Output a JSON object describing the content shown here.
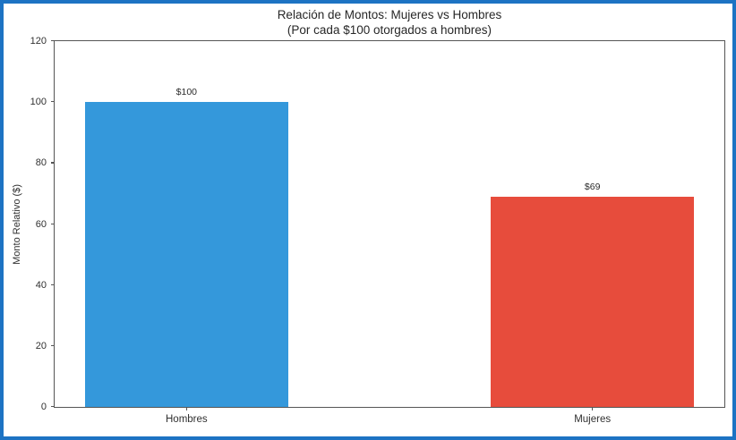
{
  "window": {
    "border_color": "#1d73c3",
    "background": "#ffffff"
  },
  "chart_data": {
    "type": "bar",
    "title": "Relación de Montos: Mujeres vs Hombres",
    "subtitle": "(Por cada $100 otorgados a hombres)",
    "xlabel": "",
    "ylabel": "Monto Relativo ($)",
    "categories": [
      "Hombres",
      "Mujeres"
    ],
    "values": [
      100,
      69
    ],
    "bar_labels": [
      "$100",
      "$69"
    ],
    "bar_colors": [
      "#3498db",
      "#e74c3c"
    ],
    "yticks": [
      0,
      20,
      40,
      60,
      80,
      100,
      120
    ],
    "ylim": [
      0,
      120
    ],
    "xlim": [
      -0.325,
      1.325
    ],
    "bar_width": 0.5,
    "grid": false,
    "legend": false,
    "axis_color": "#555555",
    "tick_color": "#303030"
  }
}
